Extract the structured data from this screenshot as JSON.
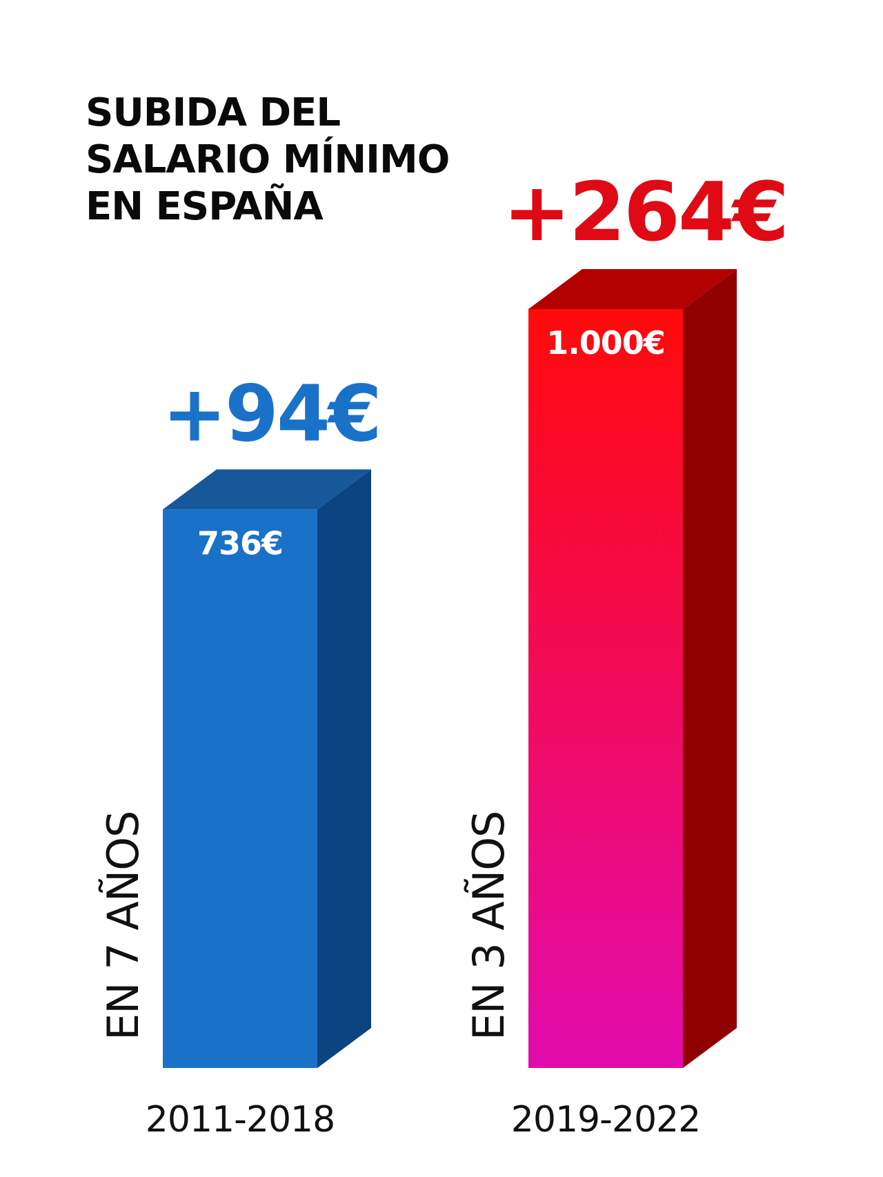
{
  "title": {
    "lines": [
      "SUBIDA DEL",
      "SALARIO MÍNIMO",
      "EN ESPAÑA"
    ]
  },
  "chart_data": {
    "type": "bar",
    "title": "SUBIDA DEL SALARIO MÍNIMO EN ESPAÑA",
    "categories": [
      "2011-2018",
      "2019-2022"
    ],
    "values": [
      736,
      1000
    ],
    "value_labels": [
      "736€",
      "1.000€"
    ],
    "increase_labels": [
      "+94€",
      "+264€"
    ],
    "increases": [
      94,
      264
    ],
    "period_labels": [
      "EN 7 AÑOS",
      "EN 3 AÑOS"
    ],
    "unit": "€",
    "ylim": [
      0,
      1000
    ],
    "colors": {
      "blue_front": "#1a72c8",
      "blue_top": "#17589a",
      "blue_side": "#0b4480",
      "blue_increase": "#1a72c8",
      "red_front_top": "#ff0a0a",
      "red_front_bottom": "#e20cae",
      "red_top": "#b30000",
      "red_side": "#910000",
      "red_increase": "#e00a14"
    }
  }
}
